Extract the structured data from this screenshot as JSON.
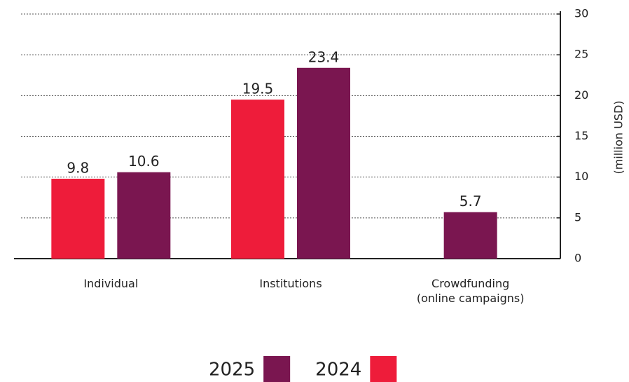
{
  "chart_data": {
    "type": "bar",
    "y_label": "(million USD)",
    "categories": [
      "Individual",
      "Institutions",
      "Crowdfunding\n(online campaigns)"
    ],
    "series": [
      {
        "name": "2024",
        "color": "#ee1c3a",
        "values": [
          9.8,
          19.5,
          null
        ]
      },
      {
        "name": "2025",
        "color": "#7a1650",
        "values": [
          10.6,
          23.4,
          5.7
        ]
      }
    ],
    "ylim": [
      0,
      30
    ],
    "yticks": [
      0,
      5,
      10,
      15,
      20,
      25,
      30
    ],
    "grid": true,
    "y_axis_side": "right",
    "legend": "bottom"
  }
}
